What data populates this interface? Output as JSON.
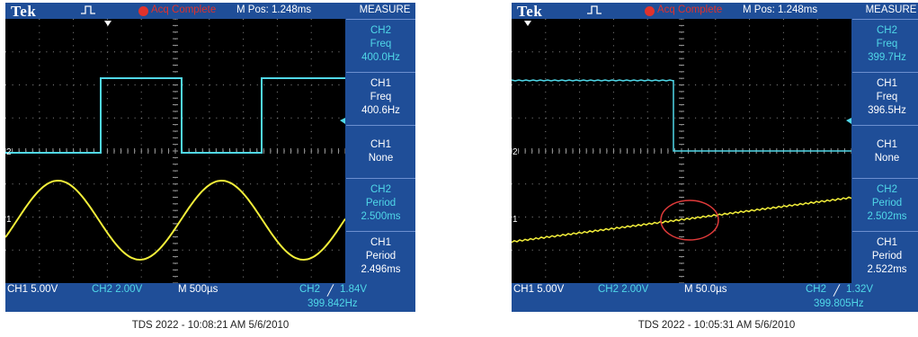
{
  "scopes": [
    {
      "brand": "Tek",
      "acq_status": "Acq Complete",
      "m_pos": "M Pos: 1.248ms",
      "menu_title": "MEASURE",
      "measurements": [
        {
          "channel": "CH2",
          "type": "Freq",
          "value": "400.0Hz"
        },
        {
          "channel": "CH1",
          "type": "Freq",
          "value": "400.6Hz"
        },
        {
          "channel": "CH1",
          "type": "None",
          "value": ""
        },
        {
          "channel": "CH2",
          "type": "Period",
          "value": "2.500ms"
        },
        {
          "channel": "CH1",
          "type": "Period",
          "value": "2.496ms"
        }
      ],
      "ch1_scale": "CH1  5.00V",
      "ch2_scale": "CH2  2.00V",
      "timebase": "M 500µs",
      "trigger_source": "CH2",
      "trigger_level": "1.84V",
      "trigger_freq": "399.842Hz",
      "ch1_marker": "1",
      "ch2_marker": "2",
      "caption": "TDS 2022 - 10:08:21 AM   5/6/2010",
      "colors": {
        "ch1": "#f2ee3a",
        "ch2": "#50d8e8"
      }
    },
    {
      "brand": "Tek",
      "acq_status": "Acq Complete",
      "m_pos": "M Pos: 1.248ms",
      "menu_title": "MEASURE",
      "measurements": [
        {
          "channel": "CH2",
          "type": "Freq",
          "value": "399.7Hz"
        },
        {
          "channel": "CH1",
          "type": "Freq",
          "value": "396.5Hz"
        },
        {
          "channel": "CH1",
          "type": "None",
          "value": ""
        },
        {
          "channel": "CH2",
          "type": "Period",
          "value": "2.502ms"
        },
        {
          "channel": "CH1",
          "type": "Period",
          "value": "2.522ms"
        }
      ],
      "ch1_scale": "CH1  5.00V",
      "ch2_scale": "CH2  2.00V",
      "timebase": "M 50.0µs",
      "trigger_source": "CH2",
      "trigger_level": "1.32V",
      "trigger_freq": "399.805Hz",
      "ch1_marker": "1",
      "ch2_marker": "2",
      "caption": "TDS 2022 - 10:05:31 AM   5/6/2010",
      "colors": {
        "ch1": "#f2ee3a",
        "ch2": "#50d8e8",
        "highlight": "#e03a3a"
      }
    }
  ]
}
